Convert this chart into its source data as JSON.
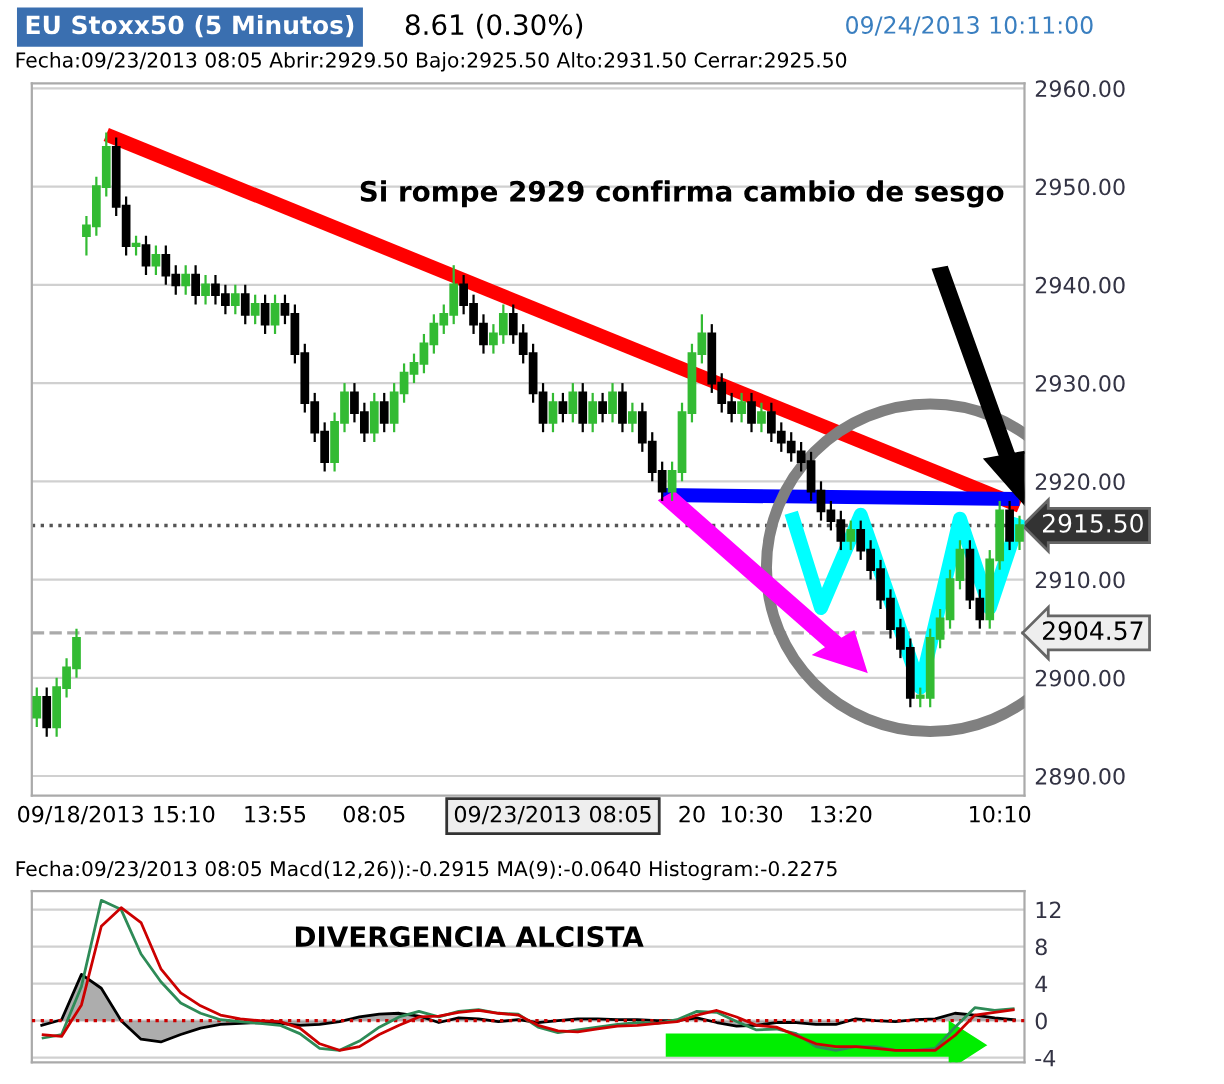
{
  "chart_data": [
    {
      "type": "candlestick",
      "title": "EU Stoxx50 (5 Minutos)",
      "subtitle": "Fecha:09/23/2013 08:05 Abrir:2929.50 Bajo:2925.50 Alto:2931.50 Cerrar:2925.50",
      "annotations": [
        "8.61 (0.30%)",
        "09/24/2013 10:11:00",
        "Si rompe 2929 confirma cambio de sesgo"
      ],
      "categories": [
        null,
        null,
        null,
        null,
        null,
        null,
        null,
        null,
        "09/18/2013 15:10",
        null,
        null,
        null,
        null,
        null,
        null,
        null,
        null,
        null,
        null,
        null,
        null,
        null,
        null,
        null,
        "13:55",
        null,
        null,
        null,
        null,
        null,
        null,
        null,
        null,
        null,
        "08:05",
        null,
        null,
        null,
        null,
        null,
        null,
        null,
        null,
        null,
        null,
        null,
        null,
        null,
        null,
        null,
        null,
        null,
        "09/23/2013 08:05",
        null,
        null,
        null,
        null,
        null,
        null,
        null,
        null,
        null,
        null,
        null,
        null,
        null,
        "20",
        null,
        null,
        null,
        null,
        null,
        "10:30",
        null,
        null,
        null,
        null,
        null,
        null,
        null,
        null,
        "13:20",
        null,
        null,
        null,
        null,
        null,
        null,
        null,
        null,
        null,
        null,
        null,
        null,
        null,
        null,
        null,
        "10:10",
        null,
        null
      ],
      "ohlc": [
        [
          2896,
          2899,
          2895,
          2898
        ],
        [
          2898,
          2899,
          2894,
          2895
        ],
        [
          2895,
          2900,
          2894,
          2899
        ],
        [
          2899,
          2902,
          2898,
          2901
        ],
        [
          2901,
          2905,
          2900,
          2904
        ],
        [
          2945,
          2947,
          2943,
          2946
        ],
        [
          2946,
          2951,
          2945,
          2950
        ],
        [
          2950,
          2955.5,
          2949,
          2954
        ],
        [
          2954,
          2955,
          2947,
          2948
        ],
        [
          2948,
          2949,
          2943,
          2944
        ],
        [
          2944,
          2945,
          2943,
          2944
        ],
        [
          2944,
          2945,
          2941,
          2942
        ],
        [
          2942,
          2944,
          2941,
          2943
        ],
        [
          2943,
          2944,
          2940,
          2941
        ],
        [
          2941,
          2942,
          2939,
          2940
        ],
        [
          2940,
          2942,
          2939,
          2941
        ],
        [
          2941,
          2942,
          2938,
          2939
        ],
        [
          2939,
          2941,
          2938,
          2940
        ],
        [
          2940,
          2941,
          2938,
          2939
        ],
        [
          2939,
          2940,
          2937,
          2938
        ],
        [
          2938,
          2940,
          2937,
          2939
        ],
        [
          2939,
          2940,
          2936,
          2937
        ],
        [
          2937,
          2939,
          2936,
          2938
        ],
        [
          2938,
          2939,
          2935,
          2936
        ],
        [
          2936,
          2939,
          2935,
          2938
        ],
        [
          2938,
          2939,
          2936,
          2937
        ],
        [
          2937,
          2938,
          2932,
          2933
        ],
        [
          2933,
          2934,
          2927,
          2928
        ],
        [
          2928,
          2929,
          2924,
          2925
        ],
        [
          2925,
          2926,
          2921,
          2922
        ],
        [
          2922,
          2927,
          2921,
          2926
        ],
        [
          2926,
          2930,
          2925,
          2929
        ],
        [
          2929,
          2930,
          2926,
          2927
        ],
        [
          2927,
          2928,
          2924,
          2925
        ],
        [
          2925,
          2929,
          2924,
          2928
        ],
        [
          2928,
          2929,
          2925,
          2926
        ],
        [
          2926,
          2930,
          2925,
          2929
        ],
        [
          2929,
          2932,
          2928,
          2931
        ],
        [
          2931,
          2933,
          2930,
          2932
        ],
        [
          2932,
          2935,
          2931,
          2934
        ],
        [
          2934,
          2937,
          2933,
          2936
        ],
        [
          2936,
          2938,
          2935,
          2937
        ],
        [
          2937,
          2942,
          2936,
          2940
        ],
        [
          2940,
          2941,
          2937,
          2938
        ],
        [
          2938,
          2939,
          2935,
          2936
        ],
        [
          2936,
          2937,
          2933,
          2934
        ],
        [
          2934,
          2936,
          2933,
          2935
        ],
        [
          2935,
          2938,
          2934,
          2937
        ],
        [
          2937,
          2938,
          2934,
          2935
        ],
        [
          2935,
          2936,
          2932,
          2933
        ],
        [
          2933,
          2934,
          2928,
          2929
        ],
        [
          2929,
          2930,
          2925,
          2926
        ],
        [
          2926,
          2929,
          2925,
          2928
        ],
        [
          2928,
          2929,
          2926,
          2927
        ],
        [
          2927,
          2930,
          2926,
          2929
        ],
        [
          2929,
          2930,
          2925,
          2926
        ],
        [
          2926,
          2929,
          2925,
          2928
        ],
        [
          2928,
          2929,
          2926,
          2927
        ],
        [
          2927,
          2930,
          2926,
          2929
        ],
        [
          2929,
          2930,
          2925,
          2926
        ],
        [
          2926,
          2928,
          2925,
          2927
        ],
        [
          2927,
          2928,
          2923,
          2924
        ],
        [
          2924,
          2925,
          2920,
          2921
        ],
        [
          2921,
          2922,
          2918,
          2919
        ],
        [
          2919,
          2922,
          2918,
          2921
        ],
        [
          2921,
          2928,
          2920,
          2927
        ],
        [
          2927,
          2934,
          2926,
          2933
        ],
        [
          2933,
          2937,
          2932,
          2935
        ],
        [
          2935,
          2936,
          2929,
          2930
        ],
        [
          2930,
          2931,
          2927,
          2928
        ],
        [
          2928,
          2929,
          2926,
          2927
        ],
        [
          2927,
          2929,
          2926,
          2928
        ],
        [
          2928,
          2929,
          2925,
          2926
        ],
        [
          2926,
          2928,
          2925,
          2927
        ],
        [
          2927,
          2928,
          2924,
          2925
        ],
        [
          2925,
          2926,
          2923,
          2924
        ],
        [
          2924,
          2925,
          2922,
          2923
        ],
        [
          2923,
          2924,
          2921,
          2922
        ],
        [
          2922,
          2923,
          2918,
          2919
        ],
        [
          2919,
          2920,
          2916,
          2917
        ],
        [
          2917,
          2918,
          2915,
          2916
        ],
        [
          2916,
          2917,
          2913,
          2914
        ],
        [
          2914,
          2916,
          2913,
          2915
        ],
        [
          2915,
          2916,
          2912,
          2913
        ],
        [
          2913,
          2914,
          2910,
          2911
        ],
        [
          2911,
          2912,
          2907,
          2908
        ],
        [
          2908,
          2909,
          2904,
          2905
        ],
        [
          2905,
          2906,
          2902,
          2903
        ],
        [
          2903,
          2904,
          2897,
          2898
        ],
        [
          2898,
          2899,
          2897,
          2898
        ],
        [
          2898,
          2905,
          2897,
          2904
        ],
        [
          2904,
          2907,
          2903,
          2906
        ],
        [
          2906,
          2911,
          2905,
          2910
        ],
        [
          2910,
          2914,
          2909,
          2913
        ],
        [
          2913,
          2914,
          2907,
          2908
        ],
        [
          2908,
          2909,
          2905,
          2906
        ],
        [
          2906,
          2913,
          2905,
          2912
        ],
        [
          2912,
          2918,
          2911,
          2917
        ],
        [
          2917,
          2918,
          2913,
          2914
        ],
        [
          2914,
          2916.5,
          2913,
          2915.5
        ]
      ],
      "series": [
        {
          "type": "line",
          "color": "#ff0000",
          "values": [
            null,
            null,
            null,
            null,
            null,
            null,
            null,
            2955.3,
            null,
            null,
            null,
            null,
            null,
            null,
            null,
            null,
            null,
            null,
            null,
            null,
            null,
            null,
            null,
            null,
            null,
            null,
            null,
            null,
            null,
            null,
            null,
            null,
            null,
            null,
            null,
            null,
            null,
            null,
            null,
            null,
            null,
            null,
            null,
            null,
            null,
            null,
            null,
            null,
            null,
            null,
            null,
            null,
            null,
            null,
            null,
            null,
            null,
            null,
            null,
            null,
            null,
            null,
            null,
            null,
            null,
            null,
            null,
            null,
            null,
            null,
            null,
            null,
            null,
            null,
            null,
            null,
            null,
            null,
            null,
            null,
            null,
            null,
            null,
            null,
            null,
            null,
            null,
            null,
            null,
            null,
            null,
            null,
            null,
            null,
            null,
            null,
            null,
            null,
            null,
            2917.5
          ]
        },
        {
          "type": "line",
          "color": "#0000ff",
          "values": [
            null,
            null,
            null,
            null,
            null,
            null,
            null,
            null,
            null,
            null,
            null,
            null,
            null,
            null,
            null,
            null,
            null,
            null,
            null,
            null,
            null,
            null,
            null,
            null,
            null,
            null,
            null,
            null,
            null,
            null,
            null,
            null,
            null,
            null,
            null,
            null,
            null,
            null,
            null,
            null,
            null,
            null,
            null,
            null,
            null,
            null,
            null,
            null,
            null,
            null,
            null,
            null,
            null,
            null,
            null,
            null,
            null,
            null,
            null,
            null,
            null,
            null,
            null,
            2918.6,
            null,
            null,
            null,
            null,
            null,
            null,
            null,
            null,
            null,
            null,
            null,
            null,
            null,
            null,
            null,
            null,
            null,
            null,
            null,
            null,
            null,
            null,
            null,
            null,
            null,
            null,
            null,
            null,
            null,
            null,
            null,
            null,
            null,
            null,
            null,
            2918.2
          ]
        },
        {
          "type": "line",
          "color": "#00ffff",
          "values": [
            null,
            null,
            null,
            null,
            null,
            null,
            null,
            null,
            null,
            null,
            null,
            null,
            null,
            null,
            null,
            null,
            null,
            null,
            null,
            null,
            null,
            null,
            null,
            null,
            null,
            null,
            null,
            null,
            null,
            null,
            null,
            null,
            null,
            null,
            null,
            null,
            null,
            null,
            null,
            null,
            null,
            null,
            null,
            null,
            null,
            null,
            null,
            null,
            null,
            null,
            null,
            null,
            null,
            null,
            null,
            null,
            null,
            null,
            null,
            null,
            null,
            null,
            null,
            null,
            null,
            null,
            null,
            null,
            null,
            null,
            null,
            null,
            null,
            null,
            null,
            null,
            2916.8,
            null,
            null,
            2907.1,
            null,
            null,
            null,
            2916.6,
            null,
            null,
            null,
            null,
            null,
            2899,
            null,
            null,
            null,
            2916.2,
            null,
            null,
            2907.1,
            null,
            null,
            2916.2
          ]
        }
      ],
      "ref_lines": [
        {
          "axis": "y",
          "value": 2915.5,
          "label": "2915.50",
          "line_style": "dotted",
          "color": "#555555"
        },
        {
          "axis": "y",
          "value": 2904.57,
          "label": "2904.57",
          "line_style": "dashed",
          "color": "#aaaaaa"
        }
      ],
      "ylim": [
        2888,
        2960.5
      ],
      "yticks": [
        {
          "value": 2890,
          "label": "2890.00"
        },
        {
          "value": 2900,
          "label": "2900.00"
        },
        {
          "value": 2910,
          "label": "2910.00"
        },
        {
          "value": 2920,
          "label": "2920.00"
        },
        {
          "value": 2930,
          "label": "2930.00"
        },
        {
          "value": 2940,
          "label": "2940.00"
        },
        {
          "value": 2950,
          "label": "2950.00"
        },
        {
          "value": 2960,
          "label": "2960.00"
        }
      ],
      "grid": "y"
    },
    {
      "type": "line",
      "subtitle": "Fecha:09/23/2013 08:05 Macd(12,26)):-0.2915 MA(9):-0.0640 Histogram:-0.2275",
      "annotations": [
        "DIVERGENCIA ALCISTA"
      ],
      "categories": [
        null,
        null,
        null,
        null,
        null,
        null,
        null,
        null,
        null,
        null,
        null,
        null,
        null,
        null,
        null,
        null,
        null,
        null,
        null,
        null,
        null,
        null,
        null,
        null,
        null,
        null,
        null,
        null,
        null,
        null,
        null,
        null,
        null,
        null,
        null,
        null,
        null,
        null,
        null,
        null,
        null,
        null,
        null,
        null,
        null,
        null,
        null,
        null,
        null,
        null
      ],
      "series": [
        {
          "type": "area",
          "color": "#000000",
          "values": [
            -0.5,
            0.1,
            5.0,
            3.5,
            0.0,
            -2.0,
            -2.3,
            -1.5,
            -0.8,
            -0.4,
            -0.3,
            -0.2,
            -0.3,
            -0.5,
            -0.4,
            -0.1,
            0.4,
            0.7,
            0.8,
            0.5,
            -0.2,
            0.3,
            0.2,
            -0.1,
            0.1,
            -0.2,
            0.0,
            0.2,
            0.2,
            0.1,
            0.1,
            0.0,
            0.0,
            0.3,
            -0.2,
            -0.6,
            -0.5,
            -0.2,
            -0.2,
            -0.4,
            -0.4,
            0.2,
            0.0,
            -0.1,
            0.1,
            0.2,
            0.8,
            0.6,
            0.3,
            0.1
          ]
        },
        {
          "color": "#2e8b57",
          "values": [
            -1.9,
            -1.5,
            3.7,
            13.0,
            12.0,
            7.2,
            4.2,
            1.9,
            0.8,
            0.1,
            -0.1,
            -0.3,
            -0.5,
            -1.4,
            -3.0,
            -3.2,
            -2.2,
            -0.7,
            0.4,
            1.0,
            0.4,
            1.0,
            1.2,
            0.8,
            0.7,
            -0.7,
            -1.3,
            -1.0,
            -0.7,
            -0.4,
            -0.2,
            -0.3,
            0.1,
            1.0,
            0.9,
            -0.1,
            -1.0,
            -0.9,
            -1.4,
            -2.8,
            -3.2,
            -2.8,
            -2.8,
            -3.2,
            -3.2,
            -3.0,
            -0.7,
            1.4,
            1.1,
            1.3
          ]
        },
        {
          "color": "#cc0000",
          "values": [
            -1.5,
            -1.7,
            1.7,
            10.2,
            12.2,
            10.6,
            5.6,
            3.0,
            1.6,
            0.6,
            0.2,
            0.0,
            -0.1,
            -0.8,
            -2.5,
            -3.2,
            -2.8,
            -1.5,
            -0.5,
            0.4,
            0.5,
            0.9,
            1.1,
            0.8,
            0.6,
            -0.5,
            -1.1,
            -1.2,
            -0.9,
            -0.6,
            -0.5,
            -0.3,
            -0.1,
            0.6,
            1.1,
            0.4,
            -0.5,
            -0.7,
            -1.6,
            -2.5,
            -2.8,
            -2.8,
            -3.0,
            -3.2,
            -3.2,
            -3.2,
            -1.6,
            0.6,
            0.9,
            1.2
          ]
        }
      ],
      "ref_lines": [
        {
          "axis": "y",
          "value": 0,
          "line_style": "dotted",
          "color": "#cc0000"
        }
      ],
      "ylim": [
        -4.5,
        14
      ],
      "yticks": [
        -4,
        0,
        4,
        8,
        12
      ],
      "tick_labels": "y",
      "grid": "y"
    }
  ]
}
